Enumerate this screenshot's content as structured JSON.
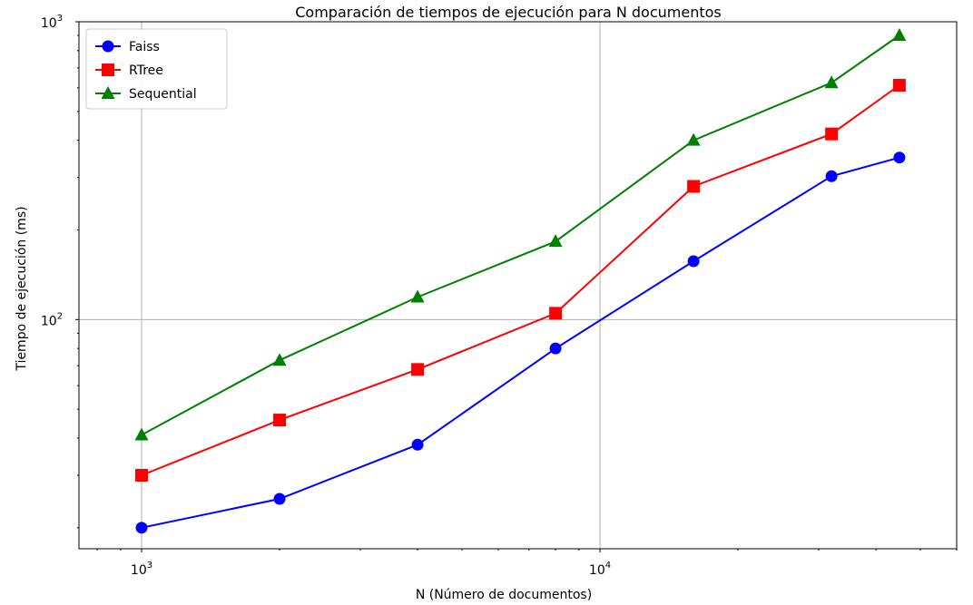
{
  "chart_data": {
    "type": "line",
    "title": "Comparación de tiempos de ejecución para N documentos",
    "xlabel": "N (Número de documentos)",
    "ylabel": "Tiempo de ejecución (ms)",
    "x_scale": "log",
    "y_scale": "log",
    "x": [
      1000,
      2000,
      4000,
      8000,
      16000,
      32000,
      45000
    ],
    "xlim": [
      730,
      60000
    ],
    "ylim": [
      17,
      1000
    ],
    "x_ticks": [
      {
        "value": 1000,
        "base": "10",
        "exp": "3"
      },
      {
        "value": 10000,
        "base": "10",
        "exp": "4"
      }
    ],
    "y_ticks": [
      {
        "value": 100,
        "base": "10",
        "exp": "2"
      },
      {
        "value": 1000,
        "base": "10",
        "exp": "3"
      }
    ],
    "grid": true,
    "legend_position": "top-left",
    "series": [
      {
        "name": "Faiss",
        "color": "#0000ff",
        "marker": "circle",
        "values": [
          20,
          25,
          38,
          80,
          157,
          303,
          350
        ]
      },
      {
        "name": "RTree",
        "color": "#ff0000",
        "marker": "square",
        "values": [
          30,
          46,
          68,
          105,
          280,
          420,
          612
        ]
      },
      {
        "name": "Sequential",
        "color": "#008000",
        "marker": "triangle",
        "values": [
          41,
          73,
          119,
          183,
          400,
          624,
          900
        ]
      }
    ]
  }
}
